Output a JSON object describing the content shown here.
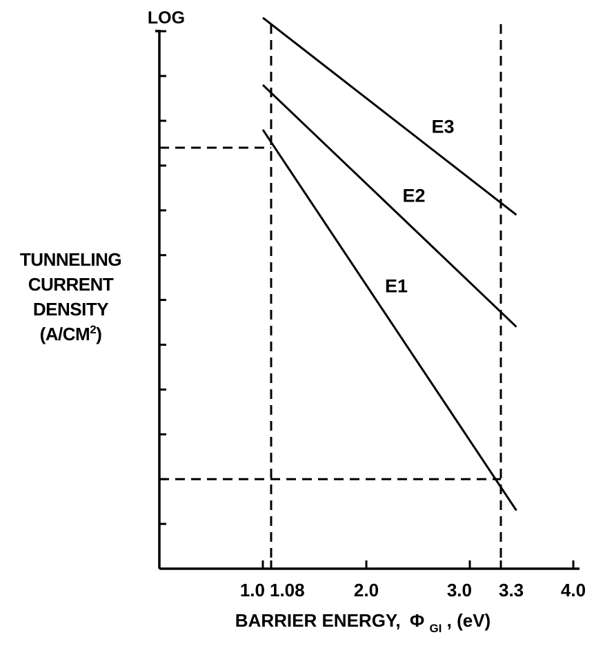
{
  "chart_data": {
    "type": "line",
    "y_scale": "log",
    "y_top_label": "LOG",
    "ylabel_lines": [
      "TUNNELING",
      "CURRENT",
      "DENSITY"
    ],
    "ylabel_unit": "(A/CM",
    "ylabel_unit_sup": "2",
    "ylabel_unit_end": ")",
    "xlabel_prefix": "BARRIER  ENERGY,",
    "xlabel_symbol": "Φ",
    "xlabel_sub": "GI",
    "xlabel_suffix": ",  (eV)",
    "xlim": [
      0.0,
      4.0
    ],
    "x_ticks": [
      {
        "value": 1.0,
        "label": "1.0"
      },
      {
        "value": 1.08,
        "label": "1.08"
      },
      {
        "value": 2.0,
        "label": "2.0"
      },
      {
        "value": 3.0,
        "label": "3.0"
      },
      {
        "value": 3.3,
        "label": "3.3"
      },
      {
        "value": 4.0,
        "label": "4.0"
      }
    ],
    "y_tick_count": 12,
    "series": [
      {
        "name": "E1",
        "x": [
          1.0,
          3.45
        ],
        "y": [
          9.8,
          1.3
        ]
      },
      {
        "name": "E2",
        "x": [
          1.0,
          3.45
        ],
        "y": [
          10.8,
          5.4
        ]
      },
      {
        "name": "E3",
        "x": [
          1.0,
          3.45
        ],
        "y": [
          12.3,
          7.9
        ]
      }
    ],
    "reference_lines": [
      {
        "orientation": "vertical",
        "x": 1.08
      },
      {
        "orientation": "vertical",
        "x": 3.3
      },
      {
        "orientation": "horizontal",
        "y": 9.4,
        "x_from": 0.0,
        "x_to": 1.08
      },
      {
        "orientation": "horizontal",
        "y": 2.0,
        "x_from": 0.0,
        "x_to": 3.3
      }
    ],
    "grid": false,
    "legend": "inline-labels"
  }
}
